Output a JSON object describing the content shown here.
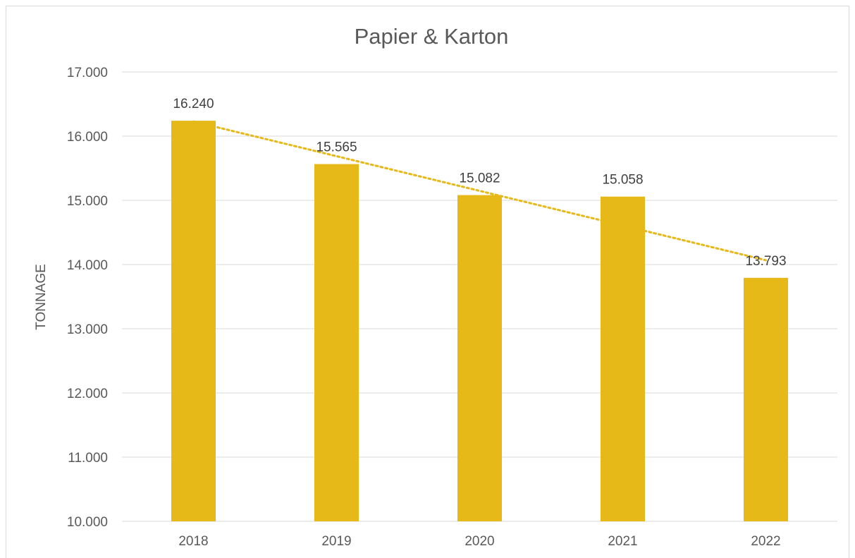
{
  "chart_data": {
    "type": "bar",
    "title": "Papier & Karton",
    "xlabel": "",
    "ylabel": "TONNAGE",
    "categories": [
      "2018",
      "2019",
      "2020",
      "2021",
      "2022"
    ],
    "values": [
      16240,
      15565,
      15082,
      15058,
      13793
    ],
    "data_labels": [
      "16.240",
      "15.565",
      "15.082",
      "15.058",
      "13.793"
    ],
    "ylim": [
      10000,
      17000
    ],
    "yticks": [
      10000,
      11000,
      12000,
      13000,
      14000,
      15000,
      16000,
      17000
    ],
    "ytick_labels": [
      "10.000",
      "11.000",
      "12.000",
      "13.000",
      "14.000",
      "15.000",
      "16.000",
      "17.000"
    ],
    "grid": true,
    "legend": "none",
    "trendline": {
      "type": "linear",
      "style": "dotted"
    },
    "colors": {
      "bar": "#E6B818",
      "trendline": "#E6B818",
      "grid": "#d9d9d9",
      "text": "#595959"
    }
  }
}
